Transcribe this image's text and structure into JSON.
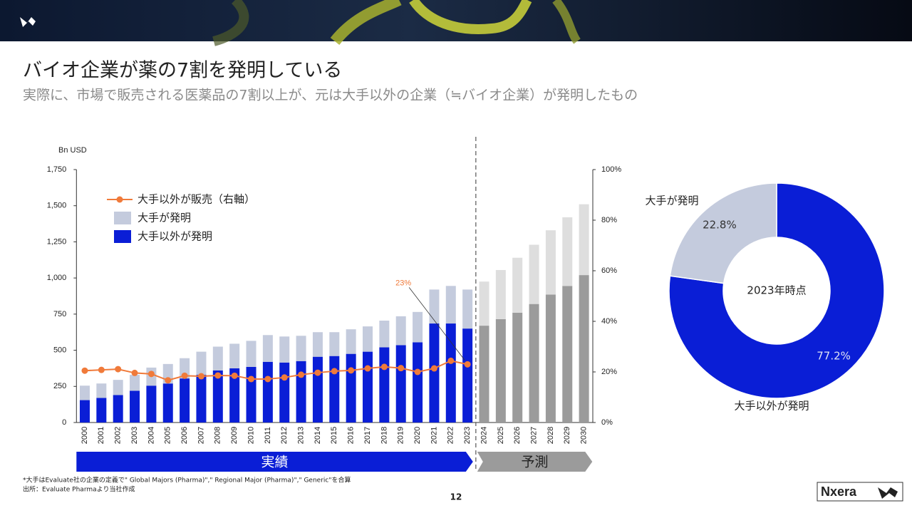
{
  "header": {
    "title": "バイオ企業が薬の7割を発明している",
    "subtitle": "実際に、市場で販売される医薬品の7割以上が、元は大手以外の企業（≒バイオ企業）が発明したもの"
  },
  "chart_data": [
    {
      "type": "bar",
      "y_label": "Bn USD",
      "categories": [
        "2000",
        "2001",
        "2002",
        "2003",
        "2004",
        "2005",
        "2006",
        "2007",
        "2008",
        "2009",
        "2010",
        "2011",
        "2012",
        "2013",
        "2014",
        "2015",
        "2016",
        "2017",
        "2018",
        "2019",
        "2020",
        "2021",
        "2022",
        "2023",
        "2024",
        "2025",
        "2026",
        "2027",
        "2028",
        "2029",
        "2030"
      ],
      "series": [
        {
          "name": "大手以外が発明",
          "color": "#0a1ed6",
          "forecast_color": "#9b9b9b",
          "values": [
            155,
            170,
            190,
            220,
            255,
            270,
            305,
            330,
            360,
            375,
            385,
            420,
            415,
            425,
            455,
            460,
            475,
            490,
            520,
            535,
            555,
            685,
            685,
            650,
            670,
            715,
            760,
            820,
            885,
            945,
            1020
          ]
        },
        {
          "name": "大手が発明",
          "color": "#c4cbdd",
          "forecast_color": "#dedede",
          "values": [
            100,
            100,
            105,
            110,
            125,
            135,
            140,
            160,
            165,
            170,
            180,
            185,
            180,
            175,
            170,
            165,
            170,
            175,
            185,
            200,
            210,
            235,
            260,
            270,
            305,
            340,
            380,
            410,
            445,
            475,
            490
          ]
        },
        {
          "name": "大手以外が販売（右軸）",
          "type": "line",
          "axis": "y2",
          "color": "#f07a3a",
          "values": [
            20.5,
            20.8,
            21.1,
            19.6,
            19.2,
            16.7,
            18.5,
            18.3,
            18.6,
            18.5,
            17.2,
            17.2,
            17.8,
            18.9,
            19.7,
            20.3,
            20.6,
            21.4,
            22.0,
            21.5,
            20.0,
            21.4,
            24.4,
            23,
            null,
            null,
            null,
            null,
            null,
            null,
            null
          ],
          "value_labels": [
            null,
            null,
            null,
            null,
            null,
            null,
            null,
            null,
            null,
            null,
            null,
            null,
            null,
            null,
            null,
            null,
            null,
            null,
            null,
            null,
            null,
            null,
            null,
            "23%",
            null,
            null,
            null,
            null,
            null,
            null,
            null
          ]
        }
      ],
      "ylim": [
        0,
        1750
      ],
      "yticks": [
        0,
        250,
        500,
        750,
        {
          "value": 1000,
          "label": "1,000"
        },
        {
          "value": 1250,
          "label": "1,250"
        },
        {
          "value": 1500,
          "label": "1,500"
        },
        {
          "value": 1750,
          "label": "1,750"
        }
      ],
      "y2lim": [
        0,
        100
      ],
      "y2ticks": [
        {
          "value": 0,
          "label": "0%"
        },
        {
          "value": 20,
          "label": "20%"
        },
        {
          "value": 40,
          "label": "40%"
        },
        {
          "value": 60,
          "label": "60%"
        },
        {
          "value": 80,
          "label": "80%"
        },
        {
          "value": 100,
          "label": "100%"
        }
      ],
      "periods": [
        {
          "label": "実績",
          "from": "2000",
          "to": "2023"
        },
        {
          "label": "予測",
          "from": "2024",
          "to": "2030"
        }
      ]
    },
    {
      "type": "pie",
      "donut": true,
      "center_label": "2023年時点",
      "categories": [
        "大手以外が発明",
        "大手が発明"
      ],
      "values": [
        77.2,
        22.8
      ],
      "value_labels": [
        "77.2%",
        "22.8%"
      ],
      "colors": [
        "#0a1ed6",
        "#c4cbdd"
      ]
    }
  ],
  "footnotes": [
    "*大手はEvaluate社の企業の定義で\" Global Majors (Pharma)\",\" Regional Major (Pharma)\",\" Generic\"を合算",
    "出所：Evaluate Pharmaより当社作成"
  ],
  "page_number": "12",
  "logo": "Nxera"
}
